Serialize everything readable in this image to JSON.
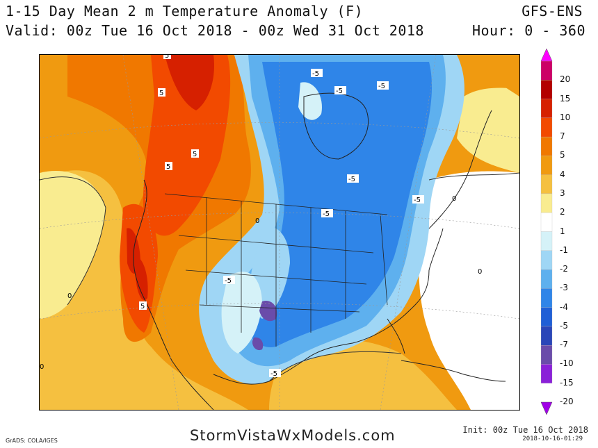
{
  "header": {
    "title": "1-15 Day Mean 2 m Temperature Anomaly (F)",
    "valid": "Valid: 00z Tue 16 Oct 2018 - 00z Wed 31 Oct 2018",
    "model": "GFS-ENS",
    "hour": "Hour: 0 - 360"
  },
  "map": {
    "contour_labels": [
      "5",
      "5",
      "5",
      "5",
      "5",
      "-5",
      "-5",
      "-5",
      "-5",
      "-5",
      "-5",
      "-5",
      "-5",
      "0",
      "0",
      "0",
      "0",
      "0"
    ]
  },
  "colorbar": {
    "levels": [
      "20",
      "15",
      "10",
      "7",
      "5",
      "4",
      "3",
      "2",
      "1",
      "-1",
      "-2",
      "-3",
      "-4",
      "-5",
      "-7",
      "-10",
      "-15",
      "-20"
    ],
    "colors": [
      "#f0f",
      "#cc0066",
      "#b30000",
      "#d62000",
      "#f24a00",
      "#f07800",
      "#f09a10",
      "#f5c040",
      "#f9ec90",
      "#ffffff",
      "#d5f2f8",
      "#9fd6f5",
      "#5eb0ee",
      "#2f85e8",
      "#1f5fd6",
      "#2a46b8",
      "#6a4caa",
      "#8a20d8",
      "#a000e6"
    ]
  },
  "footer": {
    "left": "GrADS: COLA/IGES",
    "center": "StormVistaWxModels.com",
    "init": "Init: 00z Tue 16 Oct 2018",
    "stamp": "2018-10-16-01:29"
  }
}
